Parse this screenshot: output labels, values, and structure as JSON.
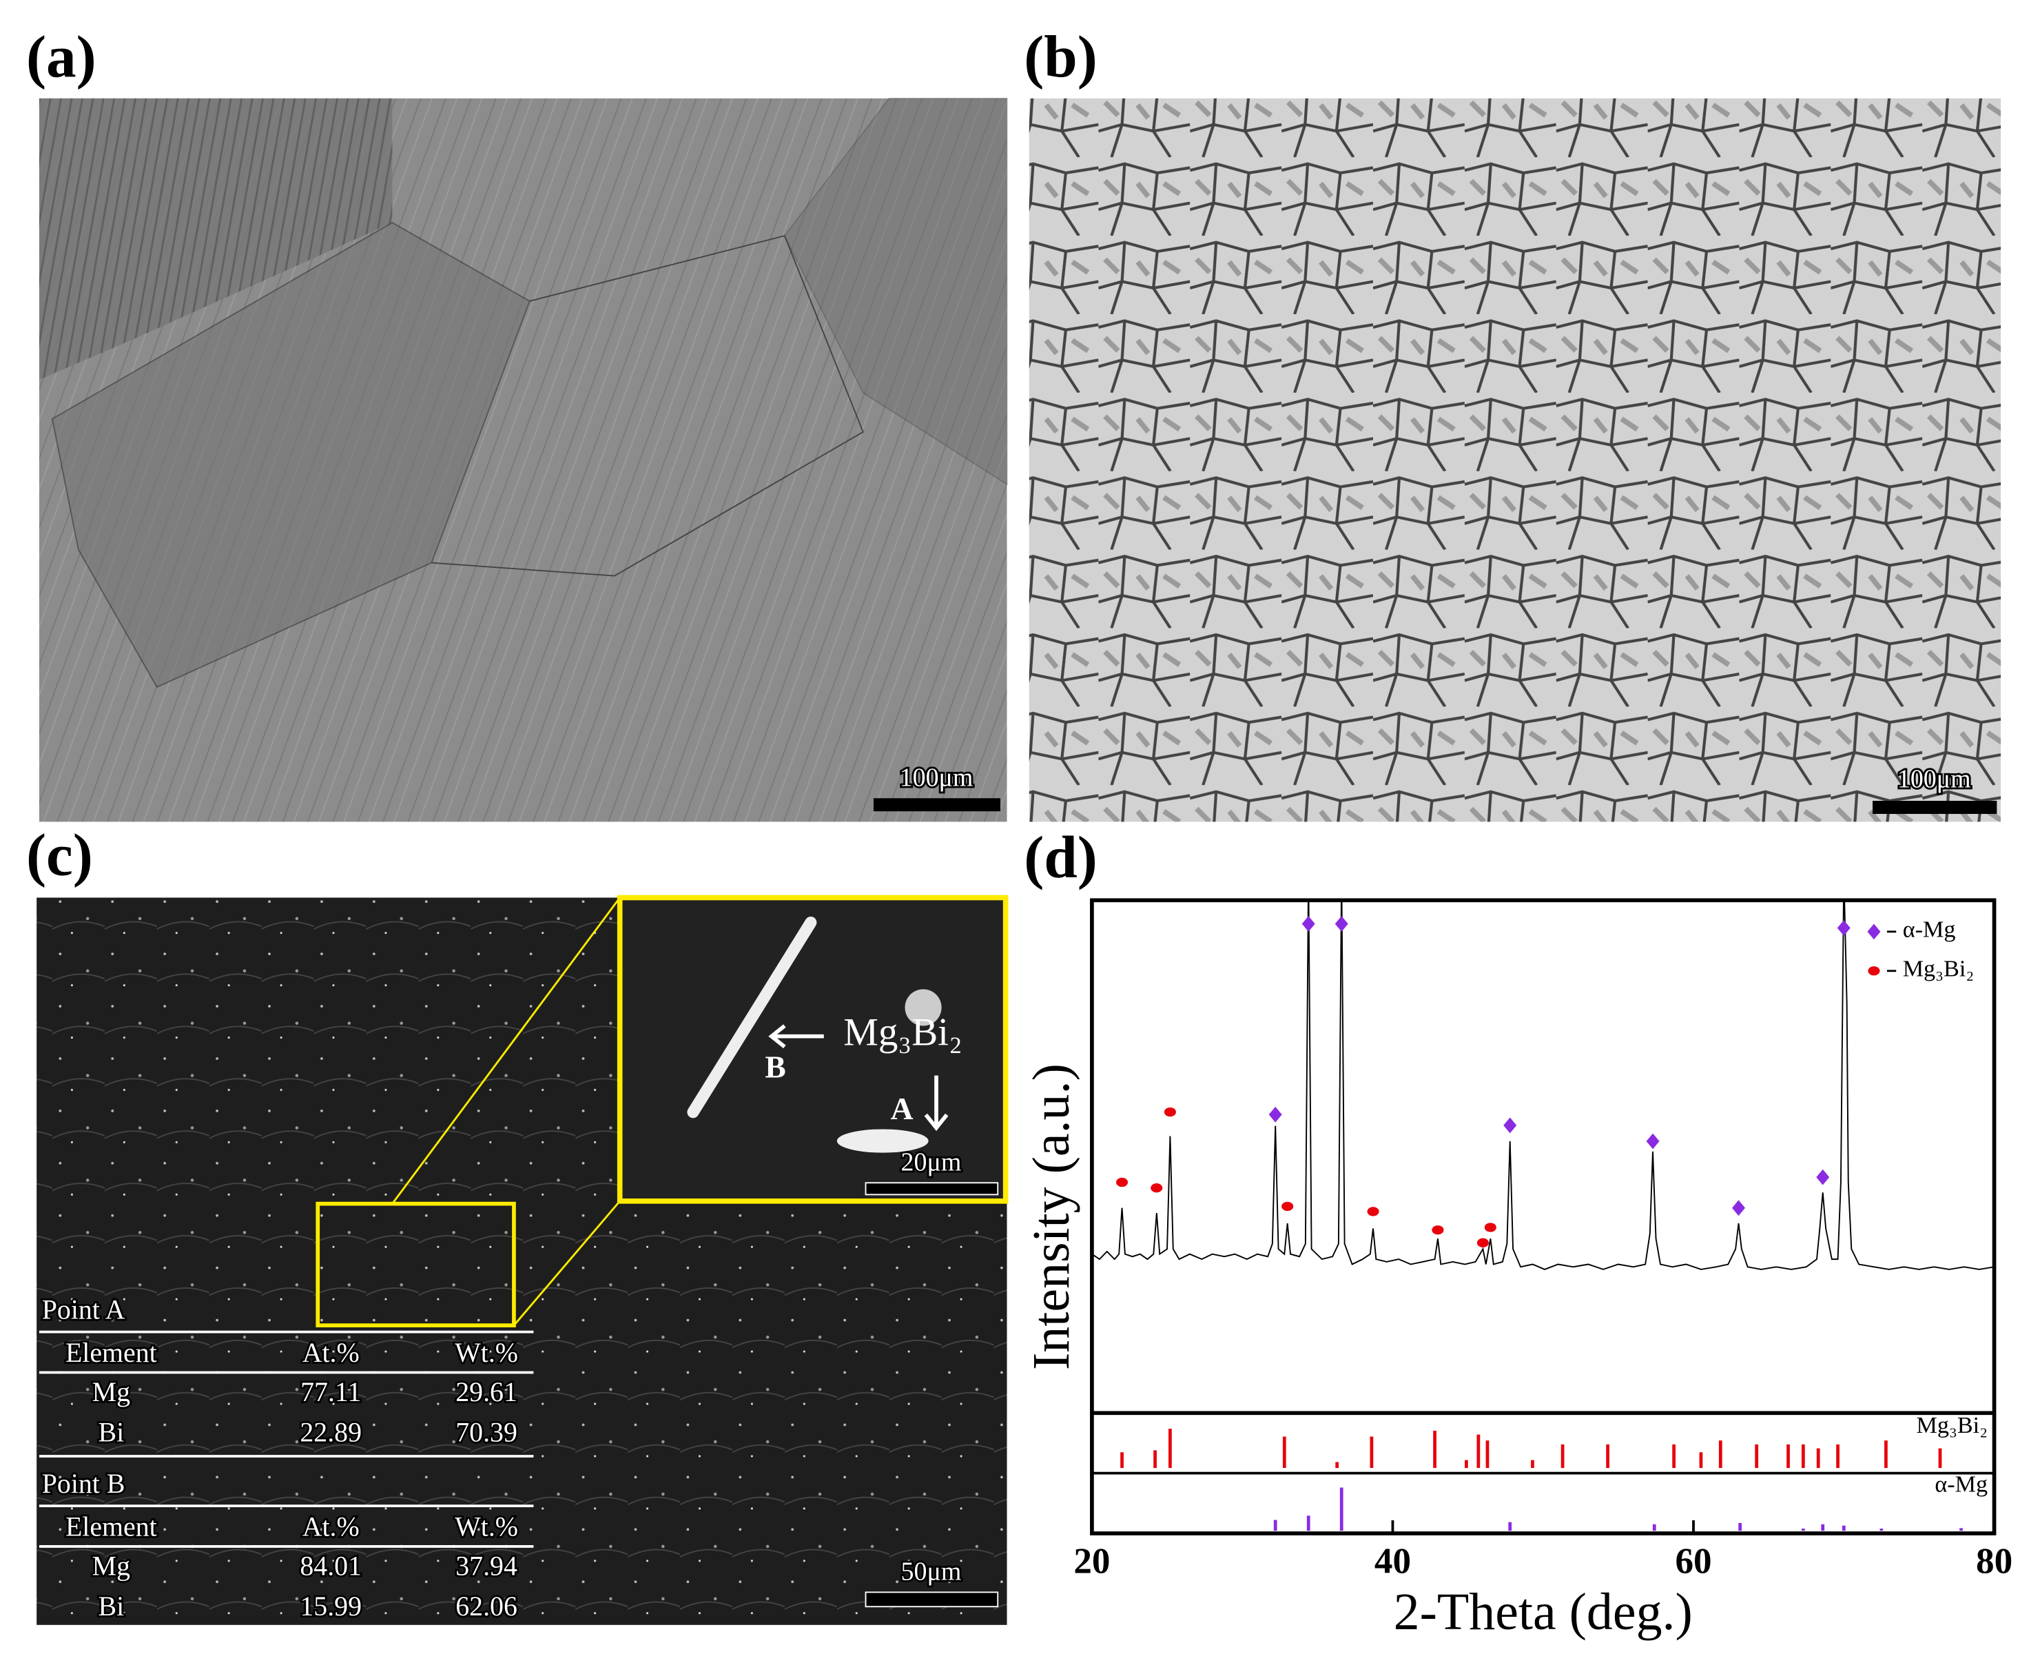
{
  "panels": {
    "a": {
      "label": "(a)",
      "scale_bar": "100μm"
    },
    "b": {
      "label": "(b)",
      "scale_bar": "100μm"
    },
    "c": {
      "label": "(c)",
      "scale_bar": "50μm",
      "inset": {
        "scale_bar": "20μm",
        "phase": "Mg₃Bi₂",
        "point_a": "A",
        "point_b": "B"
      },
      "table": {
        "point_a": {
          "title": "Point A",
          "header": [
            "Element",
            "At.%",
            "Wt.%"
          ],
          "rows": [
            [
              "Mg",
              "77.11",
              "29.61"
            ],
            [
              "Bi",
              "22.89",
              "70.39"
            ]
          ]
        },
        "point_b": {
          "title": "Point B",
          "header": [
            "Element",
            "At.%",
            "Wt.%"
          ],
          "rows": [
            [
              "Mg",
              "84.01",
              "37.94"
            ],
            [
              "Bi",
              "15.99",
              "62.06"
            ]
          ]
        }
      }
    }
  },
  "chart_data": {
    "type": "line",
    "panel_label": "(d)",
    "x_label": "2-Theta (deg.)",
    "y_label": "Intensity (a.u.)",
    "xlim": [
      20,
      80
    ],
    "xticks": [
      20,
      40,
      60,
      80
    ],
    "ylim": [
      0,
      100
    ],
    "series": [
      {
        "color": "#000000",
        "x": [
          20,
          20.5,
          21,
          21.5,
          21.8,
          22,
          22.2,
          22.7,
          23.2,
          23.7,
          24.1,
          24.3,
          24.5,
          25,
          25.2,
          25.4,
          25.8,
          26.5,
          27.3,
          28,
          28.8,
          29.5,
          30.3,
          31,
          31.7,
          32,
          32.2,
          32.4,
          32.8,
          33,
          33.2,
          33.8,
          34.2,
          34.4,
          34.6,
          35.3,
          36,
          36.4,
          36.6,
          36.8,
          37.3,
          38,
          38.5,
          38.7,
          38.9,
          39.6,
          40.4,
          41.2,
          42,
          42.8,
          43,
          43.2,
          44,
          44.8,
          45.5,
          46,
          46.2,
          46.5,
          46.7,
          47.3,
          47.6,
          47.8,
          48,
          48.5,
          49.3,
          50.1,
          51,
          52,
          53,
          54,
          55,
          56,
          56.8,
          57.1,
          57.3,
          57.5,
          57.8,
          58.6,
          59.5,
          60.5,
          61.5,
          62.3,
          62.8,
          63,
          63.2,
          63.6,
          64.5,
          65.5,
          66.5,
          67.5,
          68.2,
          68.4,
          68.6,
          68.8,
          69.2,
          69.6,
          69.8,
          70,
          70.2,
          70.3,
          70.5,
          71,
          72,
          73,
          74,
          75,
          76,
          77,
          78,
          79,
          80
        ],
        "values": [
          31,
          30,
          31.5,
          30,
          31,
          40,
          31,
          30.5,
          31,
          30,
          31,
          39,
          31,
          32,
          54,
          32,
          30,
          31,
          30,
          31,
          30.5,
          31,
          30,
          31,
          30.5,
          33,
          56,
          32,
          31,
          37,
          31,
          30.5,
          33,
          105,
          32,
          30,
          30.5,
          33,
          105,
          33,
          29,
          30,
          31,
          36,
          30,
          29.5,
          30,
          29,
          29.5,
          30,
          34,
          29,
          29.5,
          29,
          29.5,
          32,
          29,
          34,
          29,
          29.5,
          33,
          53,
          32,
          28.5,
          29,
          28,
          29,
          28.5,
          29,
          28,
          29,
          28.5,
          29,
          35,
          51,
          34,
          29,
          28.5,
          29,
          28,
          28.5,
          29,
          32,
          37,
          32,
          28.5,
          28,
          28.5,
          28,
          28.5,
          30,
          36,
          43,
          36,
          30,
          30,
          45,
          105,
          80,
          45,
          32,
          29,
          28.5,
          28,
          28.5,
          28,
          28.5,
          28,
          28.5,
          28,
          28.5
        ]
      }
    ],
    "markers": [
      {
        "name": "α-Mg",
        "color": "#8a2be2",
        "shape": "diamond",
        "x": [
          32.2,
          34.4,
          36.6,
          47.8,
          57.3,
          63,
          68.6,
          70
        ],
        "values": [
          58.2,
          95.4,
          95.4,
          56.1,
          53,
          40,
          46,
          94.6
        ]
      },
      {
        "name": "Mg₃Bi₂",
        "color": "#e8000b",
        "shape": "ellipse",
        "x": [
          22,
          24.3,
          25.2,
          33,
          38.7,
          43,
          46,
          46.5
        ],
        "values": [
          45,
          43.9,
          58.7,
          40.3,
          39.3,
          35.7,
          33.2,
          36.2
        ]
      }
    ],
    "references": [
      {
        "name": "Mg₃Bi₂",
        "color": "#e8000b",
        "x": [
          22,
          24.2,
          25.2,
          32.8,
          36.3,
          38.6,
          42.8,
          44.9,
          45.7,
          46.3,
          49.3,
          51.3,
          54.3,
          58.7,
          60.5,
          61.8,
          64.2,
          66.3,
          67.3,
          68.3,
          69.6,
          72.8,
          76.4
        ],
        "values": [
          40,
          45,
          100,
          80,
          15,
          80,
          95,
          20,
          85,
          70,
          20,
          60,
          60,
          60,
          40,
          70,
          60,
          60,
          60,
          50,
          60,
          70,
          50
        ]
      },
      {
        "name": "α-Mg",
        "color": "#8a2be2",
        "x": [
          32.2,
          34.4,
          36.6,
          47.8,
          57.4,
          63.1,
          67.3,
          68.6,
          70,
          72.5,
          77.8
        ],
        "values": [
          25,
          35,
          100,
          20,
          15,
          18,
          5,
          15,
          12,
          5,
          6
        ]
      }
    ]
  }
}
